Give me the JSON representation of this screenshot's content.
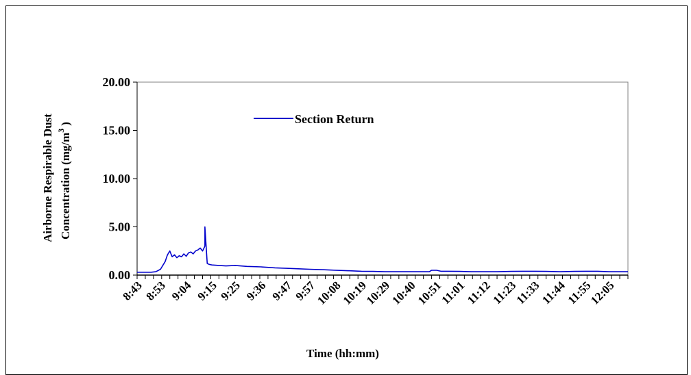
{
  "chart_data": {
    "type": "line",
    "title": "",
    "xlabel": "Time (hh:mm)",
    "ylabel_lines": [
      "Airborne Respirable Dust",
      "Concentration (mg/m",
      "3",
      ")"
    ],
    "ylim": [
      0,
      20
    ],
    "y_ticks": [
      "20.00",
      "15.00",
      "10.00",
      "5.00",
      "0.00"
    ],
    "y_tick_values": [
      20,
      15,
      10,
      5,
      0
    ],
    "x_tick_labels": [
      "8:43",
      "8:53",
      "9:04",
      "9:15",
      "9:25",
      "9:36",
      "9:47",
      "9:57",
      "10:08",
      "10:19",
      "10:29",
      "10:40",
      "10:51",
      "11:01",
      "11:12",
      "11:23",
      "11:33",
      "11:44",
      "11:55",
      "12:05"
    ],
    "x_range_minutes": [
      523,
      733
    ],
    "grid": false,
    "legend": {
      "position": "top-left",
      "entries": [
        "Section Return"
      ]
    },
    "series": [
      {
        "name": "Section Return",
        "color": "#0000CC",
        "x": [
          "8:43",
          "8:46",
          "8:49",
          "8:51",
          "8:53",
          "8:55",
          "8:56",
          "8:57",
          "8:58",
          "8:59",
          "9:00",
          "9:01",
          "9:02",
          "9:03",
          "9:04",
          "9:05",
          "9:06",
          "9:07",
          "9:08",
          "9:09",
          "9:10",
          "9:11",
          "9:12",
          "9:12",
          "9:13",
          "9:14",
          "9:15",
          "9:18",
          "9:21",
          "9:25",
          "9:30",
          "9:36",
          "9:42",
          "9:47",
          "9:52",
          "9:57",
          "10:03",
          "10:08",
          "10:14",
          "10:19",
          "10:24",
          "10:29",
          "10:35",
          "10:40",
          "10:45",
          "10:48",
          "10:49",
          "10:51",
          "10:53",
          "10:56",
          "11:01",
          "11:06",
          "11:12",
          "11:17",
          "11:23",
          "11:28",
          "11:33",
          "11:38",
          "11:44",
          "11:50",
          "11:55",
          "12:00",
          "12:05",
          "12:10",
          "12:13"
        ],
        "values": [
          0.3,
          0.3,
          0.3,
          0.35,
          0.6,
          1.4,
          2.1,
          2.5,
          1.9,
          2.1,
          1.8,
          2.0,
          1.9,
          2.2,
          1.95,
          2.3,
          2.4,
          2.2,
          2.5,
          2.6,
          2.8,
          2.5,
          3.0,
          5.0,
          1.2,
          1.1,
          1.05,
          1.0,
          0.95,
          1.0,
          0.9,
          0.85,
          0.75,
          0.7,
          0.65,
          0.6,
          0.55,
          0.5,
          0.45,
          0.4,
          0.38,
          0.35,
          0.35,
          0.35,
          0.35,
          0.35,
          0.5,
          0.5,
          0.4,
          0.4,
          0.38,
          0.35,
          0.35,
          0.35,
          0.38,
          0.4,
          0.4,
          0.38,
          0.35,
          0.38,
          0.4,
          0.4,
          0.35,
          0.35,
          0.35
        ]
      }
    ]
  }
}
